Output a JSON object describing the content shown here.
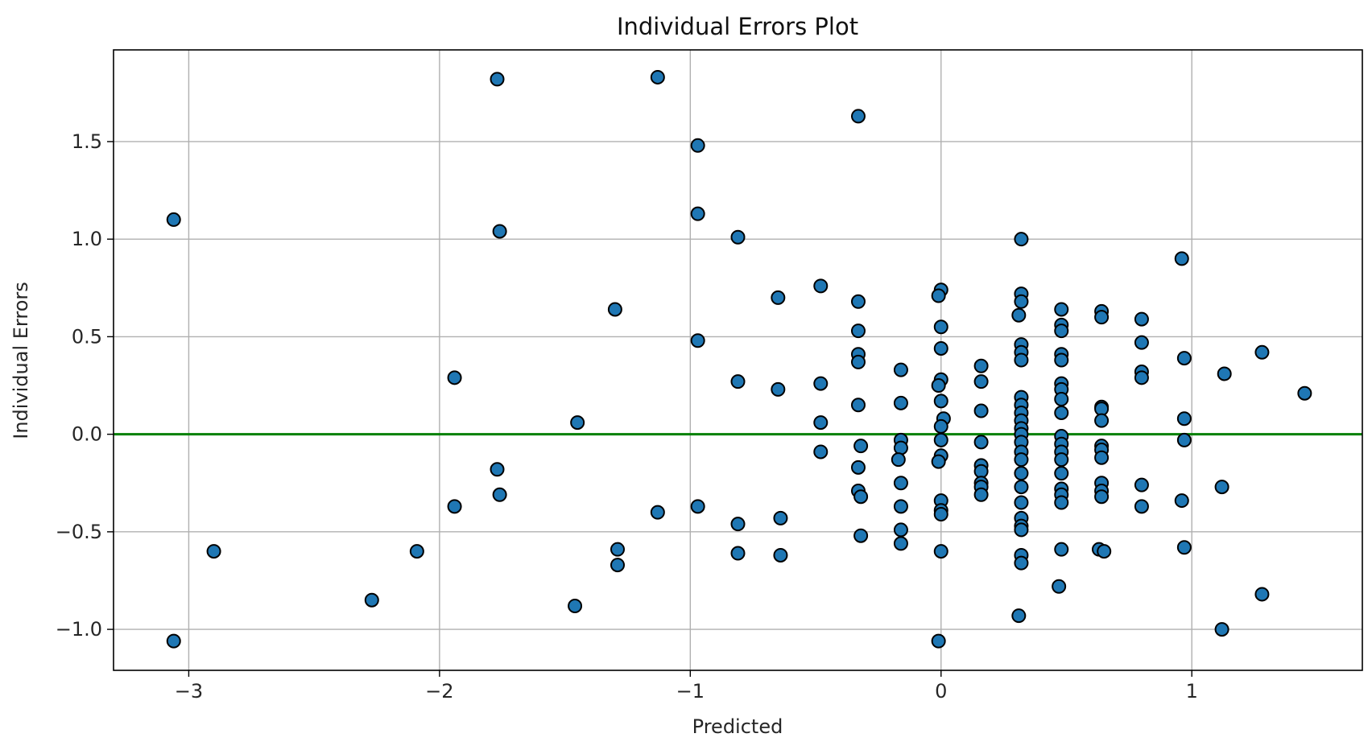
{
  "chart_data": {
    "type": "scatter",
    "title": "Individual Errors Plot",
    "xlabel": "Predicted",
    "ylabel": "Individual Errors",
    "xlim": [
      -3.3,
      1.68
    ],
    "ylim": [
      -1.21,
      1.97
    ],
    "x_ticks": [
      -3,
      -2,
      -1,
      0,
      1
    ],
    "x_tick_labels": [
      "−3",
      "−2",
      "−1",
      "0",
      "1"
    ],
    "y_ticks": [
      -1.0,
      -0.5,
      0.0,
      0.5,
      1.0,
      1.5
    ],
    "y_tick_labels": [
      "−1.0",
      "−0.5",
      "0.0",
      "0.5",
      "1.0",
      "1.5"
    ],
    "grid": true,
    "reference_line": {
      "y": 0,
      "color": "#008000"
    },
    "marker_color": "#1f77b4",
    "marker_edge_color": "#000000",
    "points": [
      [
        -3.06,
        1.1
      ],
      [
        -3.06,
        -1.06
      ],
      [
        -2.9,
        -0.6
      ],
      [
        -2.27,
        -0.85
      ],
      [
        -2.09,
        -0.6
      ],
      [
        -1.94,
        0.29
      ],
      [
        -1.94,
        -0.37
      ],
      [
        -1.77,
        1.82
      ],
      [
        -1.76,
        1.04
      ],
      [
        -1.77,
        -0.18
      ],
      [
        -1.76,
        -0.31
      ],
      [
        -1.45,
        0.06
      ],
      [
        -1.46,
        -0.88
      ],
      [
        -1.3,
        0.64
      ],
      [
        -1.29,
        -0.59
      ],
      [
        -1.29,
        -0.67
      ],
      [
        -1.13,
        1.83
      ],
      [
        -1.13,
        -0.4
      ],
      [
        -0.97,
        1.48
      ],
      [
        -0.97,
        1.13
      ],
      [
        -0.97,
        0.48
      ],
      [
        -0.97,
        -0.37
      ],
      [
        -0.81,
        1.01
      ],
      [
        -0.81,
        0.27
      ],
      [
        -0.81,
        -0.46
      ],
      [
        -0.81,
        -0.61
      ],
      [
        -0.65,
        0.7
      ],
      [
        -0.65,
        0.23
      ],
      [
        -0.64,
        -0.43
      ],
      [
        -0.64,
        -0.62
      ],
      [
        -0.48,
        0.76
      ],
      [
        -0.48,
        0.26
      ],
      [
        -0.48,
        0.06
      ],
      [
        -0.48,
        -0.09
      ],
      [
        -0.33,
        1.63
      ],
      [
        -0.33,
        0.68
      ],
      [
        -0.33,
        0.53
      ],
      [
        -0.33,
        0.41
      ],
      [
        -0.33,
        0.37
      ],
      [
        -0.33,
        0.15
      ],
      [
        -0.32,
        -0.06
      ],
      [
        -0.33,
        -0.17
      ],
      [
        -0.33,
        -0.29
      ],
      [
        -0.32,
        -0.32
      ],
      [
        -0.32,
        -0.52
      ],
      [
        -0.16,
        0.33
      ],
      [
        -0.16,
        0.16
      ],
      [
        -0.16,
        -0.03
      ],
      [
        -0.16,
        -0.07
      ],
      [
        -0.17,
        -0.13
      ],
      [
        -0.16,
        -0.25
      ],
      [
        -0.16,
        -0.37
      ],
      [
        -0.16,
        -0.49
      ],
      [
        -0.16,
        -0.56
      ],
      [
        0.0,
        0.74
      ],
      [
        -0.01,
        0.71
      ],
      [
        0.0,
        0.55
      ],
      [
        0.0,
        0.44
      ],
      [
        0.0,
        0.28
      ],
      [
        -0.01,
        0.25
      ],
      [
        0.0,
        0.17
      ],
      [
        0.01,
        0.08
      ],
      [
        0.0,
        0.04
      ],
      [
        0.0,
        -0.03
      ],
      [
        0.0,
        -0.11
      ],
      [
        -0.01,
        -0.14
      ],
      [
        0.0,
        -0.34
      ],
      [
        0.0,
        -0.39
      ],
      [
        0.0,
        -0.41
      ],
      [
        0.0,
        -0.6
      ],
      [
        -0.01,
        -1.06
      ],
      [
        0.16,
        0.35
      ],
      [
        0.16,
        0.27
      ],
      [
        0.16,
        0.12
      ],
      [
        0.16,
        -0.04
      ],
      [
        0.16,
        -0.16
      ],
      [
        0.16,
        -0.19
      ],
      [
        0.16,
        -0.25
      ],
      [
        0.16,
        -0.27
      ],
      [
        0.16,
        -0.31
      ],
      [
        0.32,
        1.0
      ],
      [
        0.32,
        0.72
      ],
      [
        0.32,
        0.68
      ],
      [
        0.31,
        0.61
      ],
      [
        0.32,
        0.46
      ],
      [
        0.32,
        0.42
      ],
      [
        0.32,
        0.38
      ],
      [
        0.32,
        0.19
      ],
      [
        0.32,
        0.15
      ],
      [
        0.32,
        0.11
      ],
      [
        0.32,
        0.07
      ],
      [
        0.32,
        0.03
      ],
      [
        0.32,
        0.0
      ],
      [
        0.32,
        -0.04
      ],
      [
        0.32,
        -0.09
      ],
      [
        0.32,
        -0.13
      ],
      [
        0.32,
        -0.2
      ],
      [
        0.32,
        -0.27
      ],
      [
        0.32,
        -0.35
      ],
      [
        0.32,
        -0.43
      ],
      [
        0.32,
        -0.47
      ],
      [
        0.32,
        -0.49
      ],
      [
        0.32,
        -0.62
      ],
      [
        0.32,
        -0.66
      ],
      [
        0.31,
        -0.93
      ],
      [
        0.48,
        0.64
      ],
      [
        0.48,
        0.56
      ],
      [
        0.48,
        0.53
      ],
      [
        0.48,
        0.41
      ],
      [
        0.48,
        0.38
      ],
      [
        0.48,
        0.26
      ],
      [
        0.48,
        0.23
      ],
      [
        0.48,
        0.18
      ],
      [
        0.48,
        0.11
      ],
      [
        0.48,
        -0.01
      ],
      [
        0.48,
        -0.05
      ],
      [
        0.48,
        -0.09
      ],
      [
        0.48,
        -0.13
      ],
      [
        0.48,
        -0.2
      ],
      [
        0.48,
        -0.28
      ],
      [
        0.48,
        -0.31
      ],
      [
        0.48,
        -0.35
      ],
      [
        0.48,
        -0.59
      ],
      [
        0.47,
        -0.78
      ],
      [
        0.64,
        0.63
      ],
      [
        0.64,
        0.6
      ],
      [
        0.64,
        0.14
      ],
      [
        0.64,
        0.13
      ],
      [
        0.64,
        0.07
      ],
      [
        0.64,
        -0.06
      ],
      [
        0.64,
        -0.08
      ],
      [
        0.64,
        -0.12
      ],
      [
        0.64,
        -0.25
      ],
      [
        0.64,
        -0.29
      ],
      [
        0.64,
        -0.32
      ],
      [
        0.63,
        -0.59
      ],
      [
        0.65,
        -0.6
      ],
      [
        0.8,
        0.59
      ],
      [
        0.8,
        0.47
      ],
      [
        0.8,
        0.32
      ],
      [
        0.8,
        0.29
      ],
      [
        0.8,
        -0.26
      ],
      [
        0.8,
        -0.37
      ],
      [
        0.96,
        0.9
      ],
      [
        0.97,
        0.39
      ],
      [
        0.97,
        0.08
      ],
      [
        0.97,
        -0.03
      ],
      [
        0.96,
        -0.34
      ],
      [
        0.97,
        -0.58
      ],
      [
        1.13,
        0.31
      ],
      [
        1.12,
        -0.27
      ],
      [
        1.12,
        -1.0
      ],
      [
        1.28,
        0.42
      ],
      [
        1.28,
        -0.82
      ],
      [
        1.45,
        0.21
      ]
    ]
  }
}
